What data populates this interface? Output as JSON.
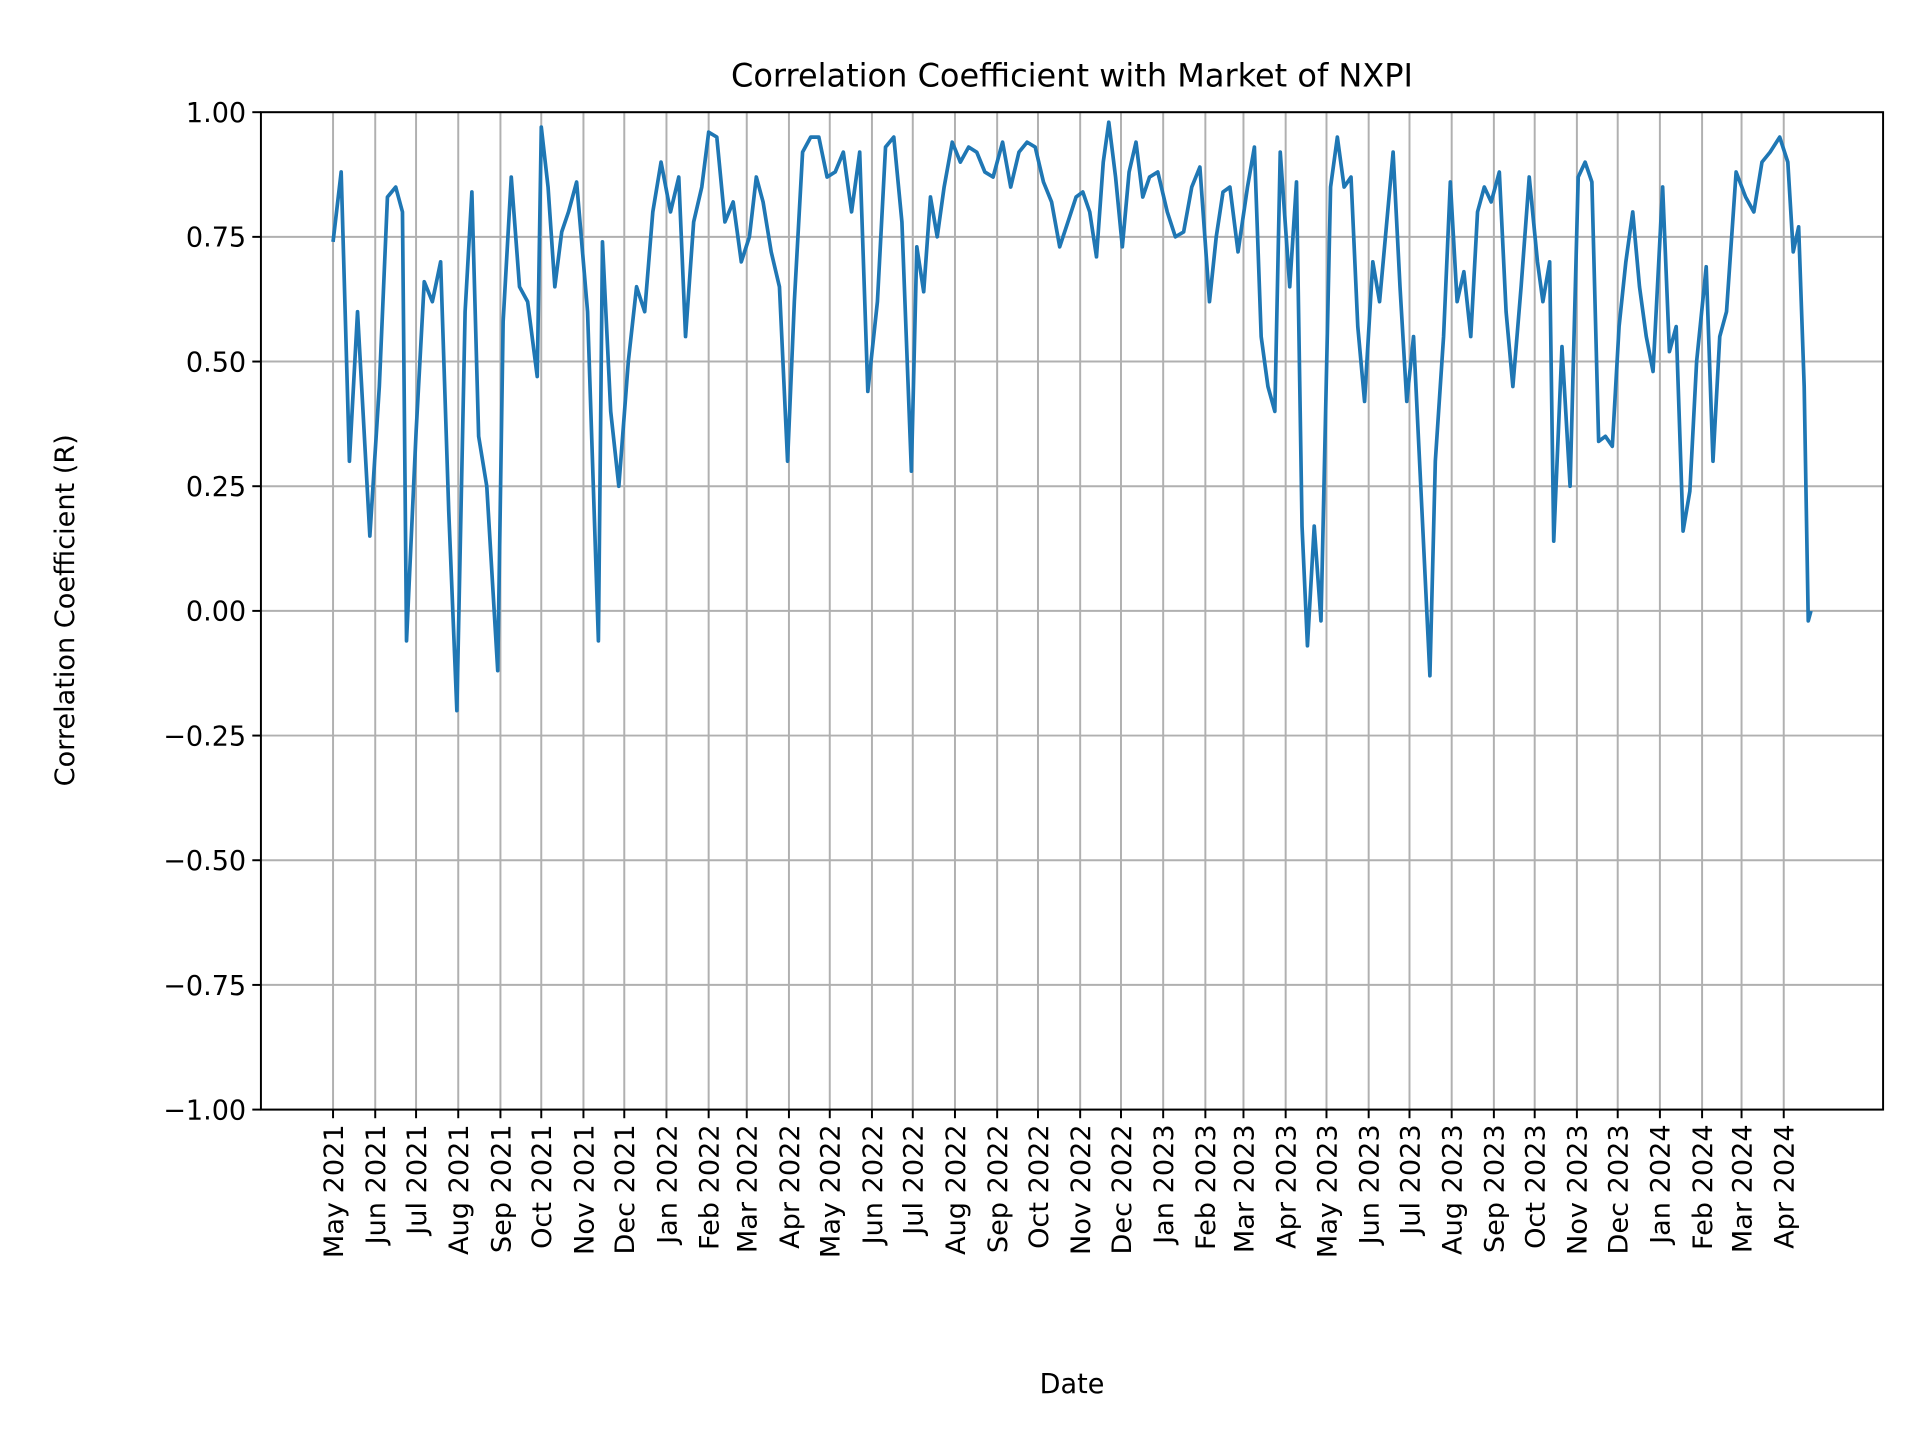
{
  "chart_data": {
    "type": "line",
    "title": "Correlation Coefficient with Market of NXPI",
    "xlabel": "Date",
    "ylabel": "Correlation Coefficient (R)",
    "ylim": [
      -1,
      1
    ],
    "xlim": [
      "2021-03-09",
      "2024-06-13"
    ],
    "grid": true,
    "line_color": "#1f77b4",
    "yticks": [
      {
        "value": 1,
        "label": "1.00"
      },
      {
        "value": 0.75,
        "label": "0.75"
      },
      {
        "value": 0.5,
        "label": "0.50"
      },
      {
        "value": 0.25,
        "label": "0.25"
      },
      {
        "value": 0,
        "label": "0.00"
      },
      {
        "value": -0.25,
        "label": "−0.25"
      },
      {
        "value": -0.5,
        "label": "−0.50"
      },
      {
        "value": -0.75,
        "label": "−0.75"
      },
      {
        "value": -1,
        "label": "−1.00"
      }
    ],
    "xticks": [
      {
        "date": "2021-05-01",
        "label": "May 2021"
      },
      {
        "date": "2021-06-01",
        "label": "Jun 2021"
      },
      {
        "date": "2021-07-01",
        "label": "Jul 2021"
      },
      {
        "date": "2021-08-01",
        "label": "Aug 2021"
      },
      {
        "date": "2021-09-01",
        "label": "Sep 2021"
      },
      {
        "date": "2021-10-01",
        "label": "Oct 2021"
      },
      {
        "date": "2021-11-01",
        "label": "Nov 2021"
      },
      {
        "date": "2021-12-01",
        "label": "Dec 2021"
      },
      {
        "date": "2022-01-01",
        "label": "Jan 2022"
      },
      {
        "date": "2022-02-01",
        "label": "Feb 2022"
      },
      {
        "date": "2022-03-01",
        "label": "Mar 2022"
      },
      {
        "date": "2022-04-01",
        "label": "Apr 2022"
      },
      {
        "date": "2022-05-01",
        "label": "May 2022"
      },
      {
        "date": "2022-06-01",
        "label": "Jun 2022"
      },
      {
        "date": "2022-07-01",
        "label": "Jul 2022"
      },
      {
        "date": "2022-08-01",
        "label": "Aug 2022"
      },
      {
        "date": "2022-09-01",
        "label": "Sep 2022"
      },
      {
        "date": "2022-10-01",
        "label": "Oct 2022"
      },
      {
        "date": "2022-11-01",
        "label": "Nov 2022"
      },
      {
        "date": "2022-12-01",
        "label": "Dec 2022"
      },
      {
        "date": "2023-01-01",
        "label": "Jan 2023"
      },
      {
        "date": "2023-02-01",
        "label": "Feb 2023"
      },
      {
        "date": "2023-03-01",
        "label": "Mar 2023"
      },
      {
        "date": "2023-04-01",
        "label": "Apr 2023"
      },
      {
        "date": "2023-05-01",
        "label": "May 2023"
      },
      {
        "date": "2023-06-01",
        "label": "Jun 2023"
      },
      {
        "date": "2023-07-01",
        "label": "Jul 2023"
      },
      {
        "date": "2023-08-01",
        "label": "Aug 2023"
      },
      {
        "date": "2023-09-01",
        "label": "Sep 2023"
      },
      {
        "date": "2023-10-01",
        "label": "Oct 2023"
      },
      {
        "date": "2023-11-01",
        "label": "Nov 2023"
      },
      {
        "date": "2023-12-01",
        "label": "Dec 2023"
      },
      {
        "date": "2024-01-01",
        "label": "Jan 2024"
      },
      {
        "date": "2024-02-01",
        "label": "Feb 2024"
      },
      {
        "date": "2024-03-01",
        "label": "Mar 2024"
      },
      {
        "date": "2024-04-01",
        "label": "Apr 2024"
      }
    ],
    "series": [
      {
        "points": [
          [
            "2021-05-01",
            0.74
          ],
          [
            "2021-05-07",
            0.88
          ],
          [
            "2021-05-13",
            0.3
          ],
          [
            "2021-05-19",
            0.6
          ],
          [
            "2021-05-28",
            0.15
          ],
          [
            "2021-06-04",
            0.45
          ],
          [
            "2021-06-10",
            0.83
          ],
          [
            "2021-06-16",
            0.85
          ],
          [
            "2021-06-21",
            0.8
          ],
          [
            "2021-06-24",
            -0.06
          ],
          [
            "2021-07-01",
            0.36
          ],
          [
            "2021-07-07",
            0.66
          ],
          [
            "2021-07-13",
            0.62
          ],
          [
            "2021-07-19",
            0.7
          ],
          [
            "2021-07-25",
            0.2
          ],
          [
            "2021-07-31",
            -0.2
          ],
          [
            "2021-08-06",
            0.6
          ],
          [
            "2021-08-11",
            0.84
          ],
          [
            "2021-08-16",
            0.35
          ],
          [
            "2021-08-22",
            0.25
          ],
          [
            "2021-08-30",
            -0.12
          ],
          [
            "2021-09-03",
            0.58
          ],
          [
            "2021-09-09",
            0.87
          ],
          [
            "2021-09-15",
            0.65
          ],
          [
            "2021-09-21",
            0.62
          ],
          [
            "2021-09-28",
            0.47
          ],
          [
            "2021-10-01",
            0.97
          ],
          [
            "2021-10-06",
            0.85
          ],
          [
            "2021-10-11",
            0.65
          ],
          [
            "2021-10-16",
            0.76
          ],
          [
            "2021-10-21",
            0.8
          ],
          [
            "2021-10-27",
            0.86
          ],
          [
            "2021-11-04",
            0.6
          ],
          [
            "2021-11-12",
            -0.06
          ],
          [
            "2021-11-15",
            0.74
          ],
          [
            "2021-11-21",
            0.4
          ],
          [
            "2021-11-27",
            0.25
          ],
          [
            "2021-12-04",
            0.5
          ],
          [
            "2021-12-10",
            0.65
          ],
          [
            "2021-12-16",
            0.6
          ],
          [
            "2021-12-22",
            0.8
          ],
          [
            "2021-12-28",
            0.9
          ],
          [
            "2022-01-04",
            0.8
          ],
          [
            "2022-01-10",
            0.87
          ],
          [
            "2022-01-15",
            0.55
          ],
          [
            "2022-01-21",
            0.78
          ],
          [
            "2022-01-27",
            0.85
          ],
          [
            "2022-02-01",
            0.96
          ],
          [
            "2022-02-07",
            0.95
          ],
          [
            "2022-02-13",
            0.78
          ],
          [
            "2022-02-19",
            0.82
          ],
          [
            "2022-02-25",
            0.7
          ],
          [
            "2022-03-03",
            0.75
          ],
          [
            "2022-03-08",
            0.87
          ],
          [
            "2022-03-13",
            0.82
          ],
          [
            "2022-03-19",
            0.72
          ],
          [
            "2022-03-25",
            0.65
          ],
          [
            "2022-03-31",
            0.3
          ],
          [
            "2022-04-05",
            0.62
          ],
          [
            "2022-04-11",
            0.92
          ],
          [
            "2022-04-17",
            0.95
          ],
          [
            "2022-04-23",
            0.95
          ],
          [
            "2022-04-29",
            0.87
          ],
          [
            "2022-05-05",
            0.88
          ],
          [
            "2022-05-11",
            0.92
          ],
          [
            "2022-05-17",
            0.8
          ],
          [
            "2022-05-23",
            0.92
          ],
          [
            "2022-05-29",
            0.44
          ],
          [
            "2022-06-05",
            0.62
          ],
          [
            "2022-06-11",
            0.93
          ],
          [
            "2022-06-17",
            0.95
          ],
          [
            "2022-06-23",
            0.78
          ],
          [
            "2022-06-30",
            0.28
          ],
          [
            "2022-07-04",
            0.73
          ],
          [
            "2022-07-09",
            0.64
          ],
          [
            "2022-07-14",
            0.83
          ],
          [
            "2022-07-19",
            0.75
          ],
          [
            "2022-07-24",
            0.85
          ],
          [
            "2022-07-30",
            0.94
          ],
          [
            "2022-08-05",
            0.9
          ],
          [
            "2022-08-11",
            0.93
          ],
          [
            "2022-08-17",
            0.92
          ],
          [
            "2022-08-23",
            0.88
          ],
          [
            "2022-08-29",
            0.87
          ],
          [
            "2022-09-05",
            0.94
          ],
          [
            "2022-09-11",
            0.85
          ],
          [
            "2022-09-17",
            0.92
          ],
          [
            "2022-09-23",
            0.94
          ],
          [
            "2022-09-29",
            0.93
          ],
          [
            "2022-10-05",
            0.86
          ],
          [
            "2022-10-11",
            0.82
          ],
          [
            "2022-10-17",
            0.73
          ],
          [
            "2022-10-23",
            0.78
          ],
          [
            "2022-10-29",
            0.83
          ],
          [
            "2022-11-03",
            0.84
          ],
          [
            "2022-11-08",
            0.8
          ],
          [
            "2022-11-13",
            0.71
          ],
          [
            "2022-11-18",
            0.9
          ],
          [
            "2022-11-22",
            0.98
          ],
          [
            "2022-11-27",
            0.87
          ],
          [
            "2022-12-02",
            0.73
          ],
          [
            "2022-12-07",
            0.88
          ],
          [
            "2022-12-12",
            0.94
          ],
          [
            "2022-12-17",
            0.83
          ],
          [
            "2022-12-22",
            0.87
          ],
          [
            "2022-12-28",
            0.88
          ],
          [
            "2023-01-04",
            0.8
          ],
          [
            "2023-01-10",
            0.75
          ],
          [
            "2023-01-16",
            0.76
          ],
          [
            "2023-01-22",
            0.85
          ],
          [
            "2023-01-28",
            0.89
          ],
          [
            "2023-02-04",
            0.62
          ],
          [
            "2023-02-09",
            0.75
          ],
          [
            "2023-02-14",
            0.84
          ],
          [
            "2023-02-19",
            0.85
          ],
          [
            "2023-02-25",
            0.72
          ],
          [
            "2023-03-04",
            0.85
          ],
          [
            "2023-03-09",
            0.93
          ],
          [
            "2023-03-14",
            0.55
          ],
          [
            "2023-03-19",
            0.45
          ],
          [
            "2023-03-24",
            0.4
          ],
          [
            "2023-03-28",
            0.92
          ],
          [
            "2023-04-04",
            0.65
          ],
          [
            "2023-04-09",
            0.86
          ],
          [
            "2023-04-13",
            0.17
          ],
          [
            "2023-04-17",
            -0.07
          ],
          [
            "2023-04-22",
            0.17
          ],
          [
            "2023-04-27",
            -0.02
          ],
          [
            "2023-05-04",
            0.85
          ],
          [
            "2023-05-09",
            0.95
          ],
          [
            "2023-05-14",
            0.85
          ],
          [
            "2023-05-19",
            0.87
          ],
          [
            "2023-05-24",
            0.57
          ],
          [
            "2023-05-29",
            0.42
          ],
          [
            "2023-06-04",
            0.7
          ],
          [
            "2023-06-09",
            0.62
          ],
          [
            "2023-06-14",
            0.77
          ],
          [
            "2023-06-19",
            0.92
          ],
          [
            "2023-06-24",
            0.65
          ],
          [
            "2023-06-29",
            0.42
          ],
          [
            "2023-07-04",
            0.55
          ],
          [
            "2023-07-16",
            -0.13
          ],
          [
            "2023-07-20",
            0.3
          ],
          [
            "2023-07-26",
            0.55
          ],
          [
            "2023-07-31",
            0.86
          ],
          [
            "2023-08-05",
            0.62
          ],
          [
            "2023-08-10",
            0.68
          ],
          [
            "2023-08-15",
            0.55
          ],
          [
            "2023-08-20",
            0.8
          ],
          [
            "2023-08-25",
            0.85
          ],
          [
            "2023-08-30",
            0.82
          ],
          [
            "2023-09-05",
            0.88
          ],
          [
            "2023-09-10",
            0.6
          ],
          [
            "2023-09-15",
            0.45
          ],
          [
            "2023-09-21",
            0.65
          ],
          [
            "2023-09-27",
            0.87
          ],
          [
            "2023-10-03",
            0.7
          ],
          [
            "2023-10-07",
            0.62
          ],
          [
            "2023-10-12",
            0.7
          ],
          [
            "2023-10-15",
            0.14
          ],
          [
            "2023-10-21",
            0.53
          ],
          [
            "2023-10-27",
            0.25
          ],
          [
            "2023-11-02",
            0.87
          ],
          [
            "2023-11-07",
            0.9
          ],
          [
            "2023-11-12",
            0.86
          ],
          [
            "2023-11-17",
            0.34
          ],
          [
            "2023-11-22",
            0.35
          ],
          [
            "2023-11-27",
            0.33
          ],
          [
            "2023-12-02",
            0.57
          ],
          [
            "2023-12-07",
            0.7
          ],
          [
            "2023-12-12",
            0.8
          ],
          [
            "2023-12-17",
            0.65
          ],
          [
            "2023-12-22",
            0.55
          ],
          [
            "2023-12-27",
            0.48
          ],
          [
            "2024-01-03",
            0.85
          ],
          [
            "2024-01-08",
            0.52
          ],
          [
            "2024-01-13",
            0.57
          ],
          [
            "2024-01-18",
            0.16
          ],
          [
            "2024-01-23",
            0.24
          ],
          [
            "2024-01-28",
            0.5
          ],
          [
            "2024-02-04",
            0.69
          ],
          [
            "2024-02-09",
            0.3
          ],
          [
            "2024-02-14",
            0.55
          ],
          [
            "2024-02-19",
            0.6
          ],
          [
            "2024-02-26",
            0.88
          ],
          [
            "2024-03-04",
            0.83
          ],
          [
            "2024-03-10",
            0.8
          ],
          [
            "2024-03-16",
            0.9
          ],
          [
            "2024-03-22",
            0.92
          ],
          [
            "2024-03-29",
            0.95
          ],
          [
            "2024-04-04",
            0.9
          ],
          [
            "2024-04-08",
            0.72
          ],
          [
            "2024-04-12",
            0.77
          ],
          [
            "2024-04-16",
            0.45
          ],
          [
            "2024-04-19",
            -0.02
          ],
          [
            "2024-04-21",
            0.0
          ]
        ]
      }
    ]
  }
}
